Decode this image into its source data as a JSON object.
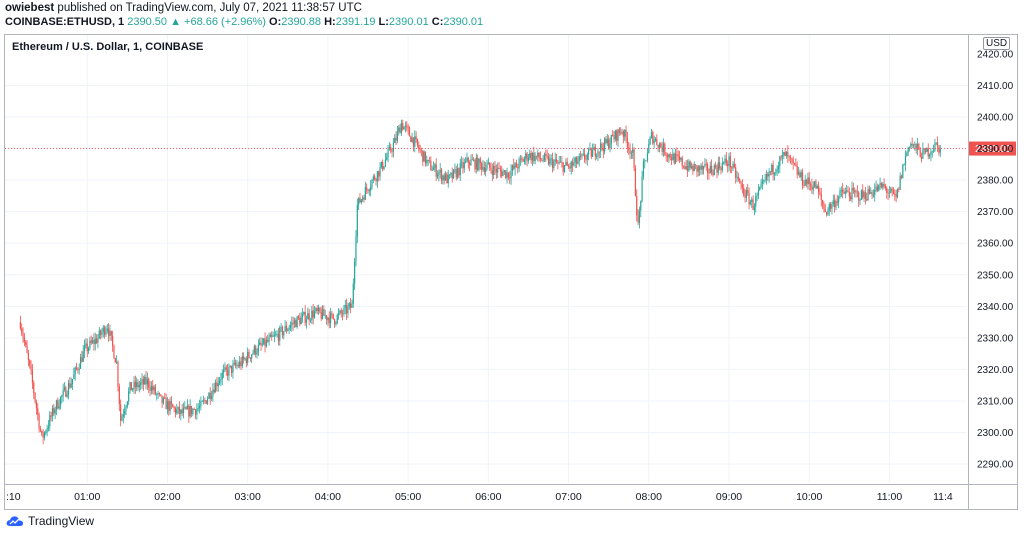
{
  "header": {
    "publisher": "owiebest",
    "published_text": "published on TradingView.com, July 07, 2021 11:38:57 UTC",
    "symbol": "COINBASE:ETHUSD, 1",
    "last": "2390.50",
    "change": "▲ +68.66 (+2.96%)",
    "o_label": "O:",
    "o": "2390.88",
    "h_label": "H:",
    "h": "2391.19",
    "l_label": "L:",
    "l": "2390.01",
    "c_label": "C:",
    "c": "2390.01"
  },
  "chart_title": "Ethereum / U.S. Dollar, 1, COINBASE",
  "currency_badge": "USD",
  "brand": {
    "name": "TradingView",
    "icon": "tradingview-cloud-icon"
  },
  "colors": {
    "up": "#26a69a",
    "down": "#ef5350",
    "grid": "#f0f3fa",
    "price_line": "#ef5350"
  },
  "chart_data": {
    "type": "candlestick",
    "xlabel": "",
    "ylabel": "",
    "ylim": [
      2284,
      2426
    ],
    "y_ticks": [
      2290,
      2300,
      2310,
      2320,
      2330,
      2340,
      2350,
      2360,
      2370,
      2380,
      2390,
      2400,
      2410
    ],
    "y_ticks_partial": [
      "2420.00"
    ],
    "x_ticks": [
      ":10",
      "01:00",
      "02:00",
      "03:00",
      "04:00",
      "05:00",
      "06:00",
      "07:00",
      "08:00",
      "09:00",
      "10:00",
      "11:00",
      "11:4"
    ],
    "last_price_label": "2390.01",
    "last_price": 2390.01,
    "grid": true,
    "approx_close_path": [
      [
        "00:10",
        2335
      ],
      [
        "00:18",
        2318
      ],
      [
        "00:26",
        2298
      ],
      [
        "00:36",
        2308
      ],
      [
        "00:48",
        2316
      ],
      [
        "00:58",
        2326
      ],
      [
        "01:08",
        2330
      ],
      [
        "01:15",
        2334
      ],
      [
        "01:22",
        2322
      ],
      [
        "01:25",
        2304
      ],
      [
        "01:32",
        2314
      ],
      [
        "01:45",
        2316
      ],
      [
        "01:55",
        2310
      ],
      [
        "02:10",
        2306
      ],
      [
        "02:25",
        2308
      ],
      [
        "02:40",
        2318
      ],
      [
        "02:55",
        2322
      ],
      [
        "03:05",
        2326
      ],
      [
        "03:20",
        2330
      ],
      [
        "03:35",
        2335
      ],
      [
        "03:50",
        2338
      ],
      [
        "04:05",
        2336
      ],
      [
        "04:18",
        2340
      ],
      [
        "04:22",
        2372
      ],
      [
        "04:30",
        2378
      ],
      [
        "04:40",
        2384
      ],
      [
        "04:50",
        2392
      ],
      [
        "04:55",
        2398
      ],
      [
        "05:05",
        2392
      ],
      [
        "05:15",
        2385
      ],
      [
        "05:30",
        2380
      ],
      [
        "05:45",
        2386
      ],
      [
        "06:00",
        2384
      ],
      [
        "06:15",
        2382
      ],
      [
        "06:30",
        2388
      ],
      [
        "06:45",
        2386
      ],
      [
        "07:00",
        2384
      ],
      [
        "07:15",
        2388
      ],
      [
        "07:30",
        2392
      ],
      [
        "07:40",
        2396
      ],
      [
        "07:48",
        2388
      ],
      [
        "07:52",
        2365
      ],
      [
        "07:56",
        2384
      ],
      [
        "08:02",
        2394
      ],
      [
        "08:15",
        2388
      ],
      [
        "08:30",
        2384
      ],
      [
        "08:45",
        2383
      ],
      [
        "09:00",
        2386
      ],
      [
        "09:10",
        2377
      ],
      [
        "09:18",
        2372
      ],
      [
        "09:30",
        2382
      ],
      [
        "09:42",
        2388
      ],
      [
        "09:55",
        2380
      ],
      [
        "10:05",
        2378
      ],
      [
        "10:12",
        2370
      ],
      [
        "10:25",
        2376
      ],
      [
        "10:40",
        2375
      ],
      [
        "10:55",
        2378
      ],
      [
        "11:05",
        2374
      ],
      [
        "11:10",
        2384
      ],
      [
        "11:15",
        2392
      ],
      [
        "11:25",
        2388
      ],
      [
        "11:35",
        2391
      ],
      [
        "11:38",
        2390
      ]
    ]
  }
}
